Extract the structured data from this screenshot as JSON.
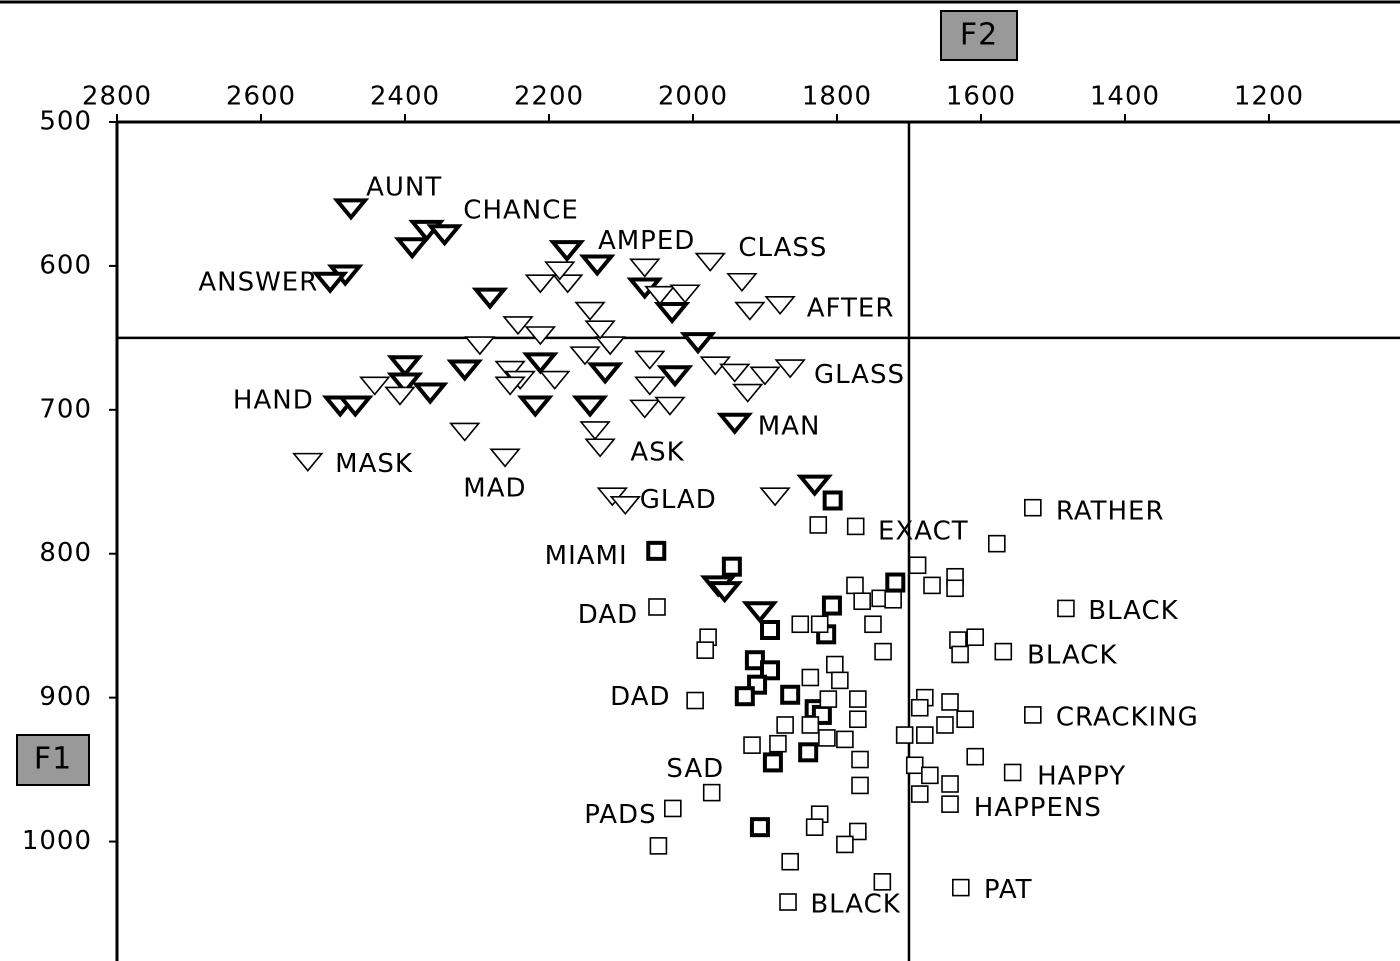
{
  "chart_data": {
    "type": "scatter",
    "x_label": "F2",
    "y_label": "F1",
    "xlim": [
      2800,
      1018
    ],
    "ylim": [
      500,
      1083
    ],
    "xticks": [
      2800,
      2600,
      2400,
      2200,
      2000,
      1800,
      1600,
      1400,
      1200
    ],
    "yticks": [
      500,
      600,
      700,
      800,
      900,
      1000
    ],
    "reference_lines": {
      "x": 1700,
      "y": 650
    },
    "color": "#000000",
    "series": [
      {
        "marker": "triangle",
        "bold": true,
        "x": [
          2475,
          2370,
          2345,
          2390,
          2483,
          2504,
          2175,
          2133,
          2067,
          2282,
          2029,
          1993,
          2400,
          2317,
          2212,
          2122,
          2025,
          2400,
          2365,
          2490,
          2469,
          2219,
          2143,
          1942,
          1831,
          1907,
          1965,
          1956
        ],
        "y": [
          560,
          575,
          578,
          587,
          606,
          611,
          589,
          599,
          615,
          622,
          632,
          653,
          669,
          672,
          667,
          674,
          676,
          681,
          688,
          697,
          697,
          697,
          697,
          709,
          752,
          840,
          822,
          826
        ]
      },
      {
        "marker": "triangle",
        "bold": false,
        "x": [
          2442,
          2407,
          2317,
          2261,
          2535,
          2212,
          2174,
          2143,
          2185,
          2067,
          1976,
          1932,
          1921,
          1879,
          2046,
          2011,
          2243,
          2212,
          2296,
          2254,
          2240,
          2192,
          2150,
          2115,
          2129,
          2060,
          2067,
          2032,
          1969,
          1942,
          1900,
          1865,
          1924,
          2136,
          2129,
          2112,
          2094,
          1886,
          2060,
          2254
        ],
        "y": [
          683,
          690,
          715,
          733,
          736,
          612,
          612,
          631,
          603,
          601,
          597,
          611,
          631,
          627,
          620,
          619,
          641,
          648,
          655,
          672,
          679,
          679,
          662,
          655,
          644,
          665,
          699,
          697,
          669,
          674,
          676,
          671,
          688,
          714,
          726,
          760,
          766,
          760,
          683,
          683
        ]
      },
      {
        "marker": "square",
        "bold": true,
        "x": [
          2051,
          1946,
          1806,
          1719,
          1807,
          1893,
          1815,
          1914,
          1893,
          1911,
          1865,
          1928,
          1831,
          1821,
          1840,
          1889,
          1907
        ],
        "y": [
          798,
          809,
          763,
          820,
          836,
          853,
          856,
          874,
          881,
          891,
          898,
          899,
          908,
          912,
          938,
          945,
          990
        ]
      },
      {
        "marker": "square",
        "bold": false,
        "x": [
          1826,
          1774,
          1578,
          1528,
          1688,
          1668,
          1636,
          1636,
          1775,
          1765,
          1740,
          1722,
          1750,
          1736,
          1851,
          1824,
          1979,
          1983,
          2050,
          1632,
          1608,
          1629,
          1569,
          1482,
          1528,
          1678,
          1643,
          1685,
          1622,
          1650,
          1706,
          1678,
          1608,
          1918,
          1882,
          1872,
          1837,
          1814,
          1789,
          1771,
          1771,
          1803,
          1796,
          1837,
          1812,
          1768,
          1768,
          1692,
          1671,
          1643,
          1685,
          1643,
          1556,
          1974,
          2028,
          2048,
          1824,
          1831,
          1771,
          1789,
          1865,
          1737,
          1628,
          1868,
          1997
        ],
        "y": [
          780,
          781,
          793,
          768,
          808,
          822,
          816,
          824,
          822,
          833,
          831,
          832,
          849,
          868,
          849,
          849,
          858,
          867,
          837,
          860,
          858,
          870,
          868,
          838,
          912,
          900,
          903,
          907,
          915,
          919,
          926,
          926,
          941,
          933,
          932,
          919,
          919,
          928,
          929,
          901,
          915,
          877,
          888,
          886,
          901,
          943,
          961,
          947,
          954,
          960,
          967,
          974,
          952,
          966,
          977,
          1003,
          981,
          990,
          993,
          1002,
          1014,
          1028,
          1032,
          1042,
          902
        ]
      }
    ],
    "annotations": [
      {
        "text": "AUNT",
        "x": 2454,
        "y": 546
      },
      {
        "text": "CHANCE",
        "x": 2319,
        "y": 562
      },
      {
        "text": "AMPED",
        "x": 2132,
        "y": 583
      },
      {
        "text": "CLASS",
        "x": 1937,
        "y": 588
      },
      {
        "text": "ANSWER",
        "x": 2687,
        "y": 612
      },
      {
        "text": "AFTER",
        "x": 1842,
        "y": 630
      },
      {
        "text": "GLASS",
        "x": 1832,
        "y": 676
      },
      {
        "text": "HAND",
        "x": 2639,
        "y": 694
      },
      {
        "text": "MAN",
        "x": 1910,
        "y": 712
      },
      {
        "text": "ASK",
        "x": 2087,
        "y": 730
      },
      {
        "text": "MASK",
        "x": 2497,
        "y": 738
      },
      {
        "text": "MAD",
        "x": 2319,
        "y": 755
      },
      {
        "text": "GLAD",
        "x": 2074,
        "y": 763
      },
      {
        "text": "RATHER",
        "x": 1496,
        "y": 771
      },
      {
        "text": "EXACT",
        "x": 1743,
        "y": 785
      },
      {
        "text": "MIAMI",
        "x": 2206,
        "y": 802
      },
      {
        "text": "DAD",
        "x": 2160,
        "y": 843
      },
      {
        "text": "BLACK",
        "x": 1451,
        "y": 840
      },
      {
        "text": "BLACK",
        "x": 1536,
        "y": 871
      },
      {
        "text": "DAD",
        "x": 2115,
        "y": 900
      },
      {
        "text": "CRACKING",
        "x": 1496,
        "y": 914
      },
      {
        "text": "SAD",
        "x": 2037,
        "y": 950
      },
      {
        "text": "HAPPY",
        "x": 1522,
        "y": 955
      },
      {
        "text": "HAPPENS",
        "x": 1610,
        "y": 977
      },
      {
        "text": "PADS",
        "x": 2151,
        "y": 982
      },
      {
        "text": "PAT",
        "x": 1596,
        "y": 1034
      },
      {
        "text": "BLACK",
        "x": 1837,
        "y": 1044
      }
    ]
  }
}
